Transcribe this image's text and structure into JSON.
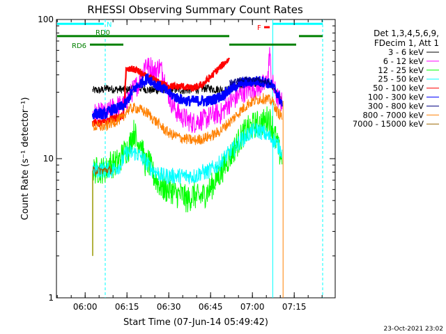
{
  "chart_data": {
    "type": "line",
    "title": "RHESSI Observing Summary Count Rates",
    "xlabel": "Start Time (07-Jun-14 05:49:42)",
    "ylabel": "Count Rate (s⁻¹ detector⁻¹)",
    "y_scale": "log",
    "ylim": [
      1,
      100
    ],
    "xlim_minutes": [
      0,
      100
    ],
    "x_ticks": [
      {
        "t": 10.3,
        "label": "06:00"
      },
      {
        "t": 25.3,
        "label": "06:15"
      },
      {
        "t": 40.3,
        "label": "06:30"
      },
      {
        "t": 55.3,
        "label": "06:45"
      },
      {
        "t": 70.3,
        "label": "07:00"
      },
      {
        "t": 85.3,
        "label": "07:15"
      }
    ],
    "y_ticks": [
      {
        "v": 1,
        "label": "1"
      },
      {
        "v": 10,
        "label": "10"
      },
      {
        "v": 100,
        "label": "100"
      }
    ],
    "legend_header": [
      "Det 1,3,4,5,6,9,",
      "FDecim 1, Att 1"
    ],
    "series": [
      {
        "name": "3 - 6 keV",
        "color": "#000000",
        "points": [
          [
            13,
            31
          ],
          [
            14,
            31
          ],
          [
            16,
            31
          ],
          [
            18,
            32
          ],
          [
            19,
            32
          ],
          [
            20,
            31.5
          ],
          [
            23,
            31.5
          ],
          [
            25,
            31
          ],
          [
            27,
            32
          ],
          [
            29,
            32
          ],
          [
            31,
            32
          ],
          [
            33,
            31
          ],
          [
            35,
            31
          ],
          [
            37,
            31
          ],
          [
            39,
            31.5
          ],
          [
            41,
            31.5
          ],
          [
            43,
            31.5
          ],
          [
            45,
            31
          ],
          [
            47,
            31
          ],
          [
            49,
            31.5
          ],
          [
            51,
            31.5
          ],
          [
            53,
            32
          ],
          [
            55,
            32
          ],
          [
            57,
            31.5
          ],
          [
            59,
            31.5
          ],
          [
            61,
            31
          ],
          [
            63,
            32
          ],
          [
            65,
            33
          ],
          [
            67,
            34
          ],
          [
            69,
            34.5
          ],
          [
            71,
            35
          ],
          [
            73,
            35
          ],
          [
            75,
            35
          ],
          [
            77,
            34
          ],
          [
            78,
            32
          ],
          [
            79,
            29
          ],
          [
            80,
            27
          ],
          [
            81,
            26
          ]
        ]
      },
      {
        "name": "6 - 12 keV",
        "color": "#ff00ff",
        "points": [
          [
            13,
            21
          ],
          [
            16,
            21
          ],
          [
            18,
            21
          ],
          [
            19,
            22
          ],
          [
            20,
            23
          ],
          [
            22,
            24
          ],
          [
            24,
            24
          ],
          [
            25,
            26
          ],
          [
            26,
            28
          ],
          [
            27,
            30
          ],
          [
            28,
            32
          ],
          [
            29,
            34
          ],
          [
            30,
            36
          ],
          [
            31,
            42
          ],
          [
            32,
            50
          ],
          [
            33,
            45
          ],
          [
            34,
            46
          ],
          [
            35,
            42
          ],
          [
            36,
            44
          ],
          [
            37,
            46
          ],
          [
            38,
            42
          ],
          [
            39,
            36
          ],
          [
            40,
            30
          ],
          [
            41,
            26
          ],
          [
            43,
            22
          ],
          [
            45,
            20
          ],
          [
            47,
            19
          ],
          [
            49,
            18
          ],
          [
            51,
            19
          ],
          [
            53,
            19
          ],
          [
            55,
            20
          ],
          [
            57,
            21
          ],
          [
            59,
            21
          ],
          [
            61,
            24
          ],
          [
            63,
            26
          ],
          [
            65,
            28
          ],
          [
            67,
            30
          ],
          [
            69,
            31.5
          ],
          [
            71,
            32
          ],
          [
            73,
            33
          ],
          [
            75,
            34
          ],
          [
            76,
            40
          ],
          [
            76.5,
            62
          ],
          [
            77,
            38
          ],
          [
            78,
            32
          ],
          [
            79,
            28
          ],
          [
            80,
            26
          ],
          [
            81,
            25
          ]
        ]
      },
      {
        "name": "12 - 25 keV",
        "color": "#00ff00",
        "points": [
          [
            13,
            8.2
          ],
          [
            16,
            8.3
          ],
          [
            18,
            8.3
          ],
          [
            19,
            9.5
          ],
          [
            20,
            9
          ],
          [
            22,
            9.5
          ],
          [
            23,
            10
          ],
          [
            24,
            11
          ],
          [
            25,
            11.5
          ],
          [
            26,
            12
          ],
          [
            27,
            14
          ],
          [
            28,
            16
          ],
          [
            29,
            12.5
          ],
          [
            30,
            14
          ],
          [
            31,
            11
          ],
          [
            32,
            9
          ],
          [
            33,
            9.5
          ],
          [
            35,
            7.5
          ],
          [
            37,
            6.5
          ],
          [
            39,
            6
          ],
          [
            41,
            6
          ],
          [
            43,
            5.5
          ],
          [
            45,
            5.5
          ],
          [
            47,
            5
          ],
          [
            49,
            5.5
          ],
          [
            51,
            5.2
          ],
          [
            53,
            5.5
          ],
          [
            55,
            6
          ],
          [
            57,
            7
          ],
          [
            59,
            8
          ],
          [
            61,
            9.5
          ],
          [
            63,
            11
          ],
          [
            65,
            13
          ],
          [
            67,
            15
          ],
          [
            69,
            16.5
          ],
          [
            71,
            17.5
          ],
          [
            73,
            18
          ],
          [
            75,
            18.5
          ],
          [
            76,
            20
          ],
          [
            77,
            18
          ],
          [
            78,
            16
          ],
          [
            79,
            13
          ],
          [
            80,
            11
          ],
          [
            81,
            10
          ]
        ]
      },
      {
        "name": "25 - 50 keV",
        "color": "#00ffff",
        "points": [
          [
            13,
            8.2
          ],
          [
            16,
            8.3
          ],
          [
            18,
            8.3
          ],
          [
            19,
            8.3
          ],
          [
            20,
            8.3
          ],
          [
            23,
            9
          ],
          [
            25,
            11
          ],
          [
            26,
            11
          ],
          [
            28,
            11
          ],
          [
            30,
            10.5
          ],
          [
            32,
            9.5
          ],
          [
            34,
            8.5
          ],
          [
            36,
            8
          ],
          [
            38,
            7.5
          ],
          [
            40,
            7.5
          ],
          [
            42,
            7.5
          ],
          [
            44,
            7.5
          ],
          [
            46,
            7.5
          ],
          [
            48,
            7.5
          ],
          [
            50,
            7.5
          ],
          [
            52,
            8
          ],
          [
            54,
            8
          ],
          [
            56,
            8.5
          ],
          [
            58,
            9
          ],
          [
            60,
            10
          ],
          [
            62,
            11
          ],
          [
            64,
            12
          ],
          [
            66,
            13.5
          ],
          [
            68,
            14.5
          ],
          [
            70,
            15.5
          ],
          [
            72,
            16
          ],
          [
            74,
            15.5
          ],
          [
            76,
            14.5
          ],
          [
            78,
            13.5
          ],
          [
            80,
            12
          ],
          [
            81,
            11
          ]
        ]
      },
      {
        "name": "50 - 100 keV",
        "color": "#ff0000",
        "points": [
          [
            13,
            18
          ],
          [
            16,
            18
          ],
          [
            18,
            18.5
          ],
          [
            19,
            19
          ],
          [
            20,
            19.5
          ],
          [
            21,
            19.5
          ],
          [
            23,
            20
          ],
          [
            24,
            20
          ],
          [
            25,
            43
          ],
          [
            27,
            44
          ],
          [
            29,
            43
          ],
          [
            31,
            40
          ],
          [
            33,
            38
          ],
          [
            35,
            37
          ],
          [
            37,
            35
          ],
          [
            39,
            34
          ],
          [
            41,
            33
          ],
          [
            43,
            33
          ],
          [
            45,
            33
          ],
          [
            47,
            32.5
          ],
          [
            49,
            32
          ],
          [
            51,
            33
          ],
          [
            53,
            35
          ],
          [
            55,
            38
          ],
          [
            57,
            42
          ],
          [
            59,
            46
          ],
          [
            61,
            50
          ],
          [
            62,
            52
          ]
        ]
      },
      {
        "name": "100 - 300 keV",
        "color": "#0000ff",
        "points": [
          [
            13,
            21
          ],
          [
            16,
            21
          ],
          [
            18,
            21
          ],
          [
            19,
            22
          ],
          [
            20,
            22.5
          ],
          [
            22,
            23
          ],
          [
            24,
            24
          ],
          [
            25,
            25
          ],
          [
            27,
            30
          ],
          [
            29,
            33
          ],
          [
            31,
            36
          ],
          [
            33,
            38
          ],
          [
            35,
            35
          ],
          [
            37,
            33
          ],
          [
            39,
            31
          ],
          [
            41,
            29
          ],
          [
            43,
            27.5
          ],
          [
            45,
            26.5
          ],
          [
            47,
            26
          ],
          [
            49,
            26
          ],
          [
            51,
            26
          ],
          [
            53,
            26
          ],
          [
            55,
            26
          ],
          [
            57,
            27
          ],
          [
            59,
            28
          ],
          [
            61,
            30
          ],
          [
            63,
            32
          ],
          [
            65,
            34
          ],
          [
            67,
            35
          ],
          [
            69,
            35.5
          ],
          [
            71,
            36
          ],
          [
            73,
            36
          ],
          [
            75,
            35.5
          ],
          [
            77,
            34
          ],
          [
            79,
            30
          ],
          [
            80,
            27
          ],
          [
            81,
            25
          ]
        ]
      },
      {
        "name": "300 - 800 keV",
        "color": "#000080",
        "points": [
          [
            62,
            35
          ],
          [
            64,
            36
          ],
          [
            66,
            37
          ],
          [
            68,
            37
          ],
          [
            70,
            37
          ],
          [
            72,
            37
          ],
          [
            74,
            36
          ],
          [
            76,
            35.5
          ],
          [
            77,
            35
          ]
        ]
      },
      {
        "name": "800 - 7000 keV",
        "color": "#ff8000",
        "points": [
          [
            13,
            17
          ],
          [
            16,
            17
          ],
          [
            18,
            17
          ],
          [
            19,
            18
          ],
          [
            20,
            18
          ],
          [
            22,
            19
          ],
          [
            24,
            19.5
          ],
          [
            25,
            22
          ],
          [
            27,
            23
          ],
          [
            29,
            23
          ],
          [
            31,
            22
          ],
          [
            33,
            21
          ],
          [
            35,
            19
          ],
          [
            37,
            17.5
          ],
          [
            39,
            16
          ],
          [
            41,
            15
          ],
          [
            43,
            14.5
          ],
          [
            45,
            14
          ],
          [
            47,
            13.8
          ],
          [
            49,
            13.5
          ],
          [
            51,
            13.7
          ],
          [
            53,
            14
          ],
          [
            55,
            14.5
          ],
          [
            57,
            15
          ],
          [
            59,
            16
          ],
          [
            61,
            17.5
          ],
          [
            63,
            19
          ],
          [
            65,
            21
          ],
          [
            67,
            23
          ],
          [
            69,
            25
          ],
          [
            71,
            26
          ],
          [
            73,
            27
          ],
          [
            75,
            27
          ],
          [
            77,
            26
          ],
          [
            78,
            25
          ],
          [
            79,
            22
          ],
          [
            80,
            21
          ],
          [
            81,
            20
          ]
        ]
      },
      {
        "name": "7000 - 15000 keV",
        "color": "#996600",
        "points": [
          [
            13,
            8.2
          ],
          [
            16,
            8.2
          ],
          [
            18,
            8.3
          ],
          [
            19,
            8.3
          ],
          [
            20,
            8.4
          ]
        ]
      }
    ],
    "spike": {
      "t": 13,
      "low": 2,
      "high": 8.2,
      "color": "#999900"
    },
    "markers": [
      {
        "label": "N",
        "color": "#00ffff",
        "y": 93,
        "segments": [
          [
            0,
            17
          ]
        ]
      },
      {
        "label": "",
        "color": "#00ffff",
        "y": 93,
        "segments": [
          [
            77.6,
            95.5
          ]
        ]
      },
      {
        "label": "F",
        "color": "#ff0000",
        "y": 88,
        "segments": [
          [
            74.5,
            76.5
          ]
        ]
      },
      {
        "label": "RD0",
        "color": "#008000",
        "y": 76,
        "segments": [
          [
            0,
            62
          ],
          [
            87,
            95.5
          ]
        ]
      },
      {
        "label": "RD6",
        "color": "#008000",
        "y": 66,
        "segments": [
          [
            12,
            24
          ],
          [
            62,
            86
          ]
        ]
      }
    ],
    "vlines": [
      {
        "t": 17.5,
        "color": "#00ffff",
        "style": "dashed"
      },
      {
        "t": 77.6,
        "color": "#00ffff",
        "style": "solid"
      },
      {
        "t": 95.5,
        "color": "#00ffff",
        "style": "dashed"
      }
    ]
  },
  "timestamp": "23-Oct-2021 23:02"
}
